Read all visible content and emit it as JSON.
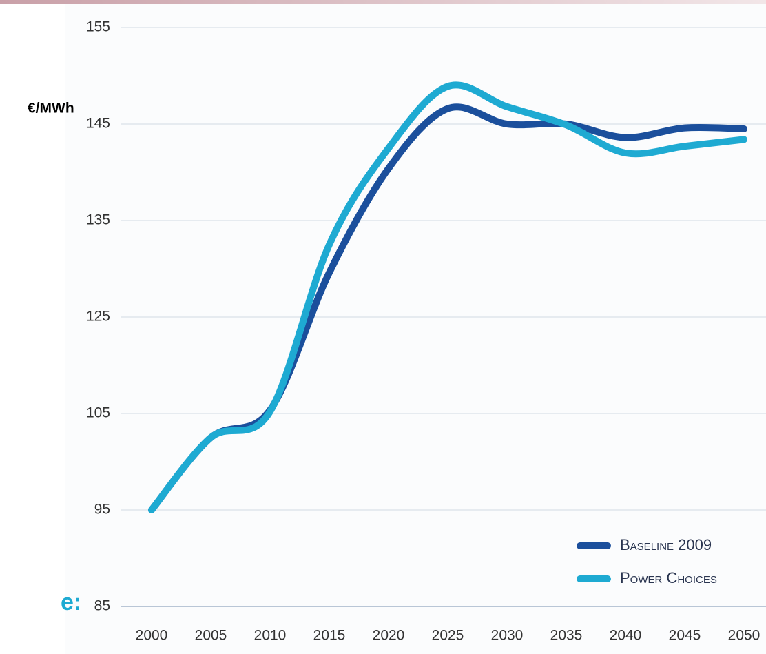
{
  "chart_data": {
    "type": "line",
    "y_label": "€/MWh",
    "annotation": "e:",
    "x": [
      2000,
      2005,
      2010,
      2015,
      2020,
      2025,
      2030,
      2035,
      2040,
      2045,
      2050
    ],
    "xlim": [
      2000,
      2050
    ],
    "xticks": [
      2000,
      2005,
      2010,
      2015,
      2020,
      2025,
      2030,
      2035,
      2040,
      2045,
      2050
    ],
    "ylim": [
      85,
      155
    ],
    "yticks": [
      155,
      145,
      135,
      125,
      105,
      95,
      85
    ],
    "grid": true,
    "legend": "lower right",
    "series": [
      {
        "name": "Baseline 2009",
        "color": "#1b4f9c",
        "values": [
          95,
          102.5,
          105.7,
          129.6,
          140.4,
          146.6,
          145,
          145,
          143.6,
          144.6,
          144.5
        ]
      },
      {
        "name": "Power Choices",
        "color": "#1eaad2",
        "values": [
          95,
          102.5,
          105.4,
          132.5,
          142.5,
          148.9,
          146.8,
          144.9,
          142,
          142.7,
          143.4
        ]
      }
    ]
  }
}
